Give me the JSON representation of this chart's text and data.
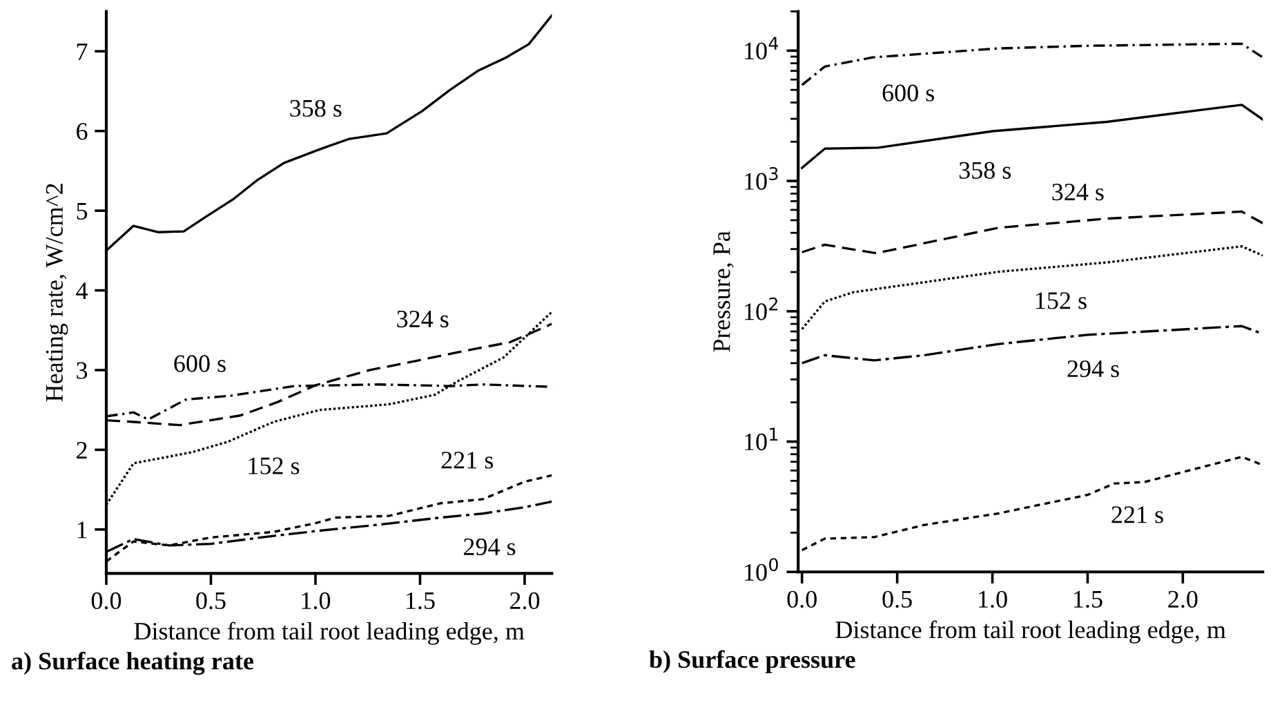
{
  "chart_data": [
    {
      "type": "line",
      "title": "a) Surface heating rate",
      "xlabel": "Distance from tail root leading edge, m",
      "ylabel": "Heating rate, W/cm^2",
      "xlim": [
        0,
        2.13
      ],
      "xticks": [
        {
          "value": 0,
          "label": "0.0"
        },
        {
          "value": 0.5,
          "label": "0.5"
        },
        {
          "value": 1,
          "label": "1.0"
        },
        {
          "value": 1.5,
          "label": "1.5"
        },
        {
          "value": 2,
          "label": "2.0"
        }
      ],
      "ylim": [
        0.45,
        7.5
      ],
      "yticks": [
        1,
        2,
        3,
        4,
        5,
        6,
        7
      ],
      "grid": false,
      "marker": "none",
      "series": [
        {
          "name": "358 s",
          "color": "#000000",
          "line_style": "solid",
          "x": [
            0,
            0.13,
            0.25,
            0.37,
            0.48,
            0.61,
            0.72,
            0.85,
            1.03,
            1.16,
            1.34,
            1.51,
            1.64,
            1.78,
            1.91,
            2.02,
            2.13
          ],
          "values": [
            4.5,
            4.81,
            4.73,
            4.74,
            4.93,
            5.15,
            5.38,
            5.6,
            5.78,
            5.9,
            5.97,
            6.25,
            6.51,
            6.76,
            6.92,
            7.09,
            7.45
          ]
        },
        {
          "name": "324 s",
          "color": "#000000",
          "line_style": "dashed",
          "x": [
            0,
            0.13,
            0.35,
            0.64,
            0.82,
            1.0,
            1.26,
            1.49,
            1.71,
            1.93,
            2.13
          ],
          "values": [
            2.37,
            2.35,
            2.31,
            2.43,
            2.6,
            2.81,
            3.0,
            3.12,
            3.24,
            3.35,
            3.58
          ]
        },
        {
          "name": "600 s",
          "color": "#000000",
          "line_style": "dashdot",
          "x": [
            0,
            0.13,
            0.2,
            0.38,
            0.6,
            0.9,
            1.3,
            1.65,
            1.8,
            2.13
          ],
          "values": [
            2.42,
            2.47,
            2.38,
            2.63,
            2.68,
            2.8,
            2.82,
            2.8,
            2.82,
            2.79
          ]
        },
        {
          "name": "152 s",
          "color": "#000000",
          "line_style": "dotted",
          "x": [
            0,
            0.13,
            0.41,
            0.58,
            0.8,
            1.02,
            1.35,
            1.57,
            1.68,
            1.9,
            2.13
          ],
          "values": [
            1.31,
            1.83,
            1.97,
            2.1,
            2.35,
            2.5,
            2.57,
            2.69,
            2.86,
            3.16,
            3.73
          ]
        },
        {
          "name": "221 s",
          "color": "#000000",
          "line_style": "shortdash",
          "x": [
            0,
            0.13,
            0.3,
            0.5,
            0.8,
            1.0,
            1.1,
            1.35,
            1.6,
            1.8,
            2.0,
            2.13
          ],
          "values": [
            0.6,
            0.85,
            0.8,
            0.9,
            0.97,
            1.08,
            1.15,
            1.17,
            1.33,
            1.38,
            1.6,
            1.68
          ]
        },
        {
          "name": "294 s",
          "color": "#000000",
          "line_style": "longdashdot",
          "x": [
            0,
            0.13,
            0.3,
            0.5,
            0.8,
            1.0,
            1.3,
            1.6,
            1.8,
            2.0,
            2.13
          ],
          "values": [
            0.72,
            0.88,
            0.8,
            0.82,
            0.92,
            0.98,
            1.06,
            1.15,
            1.2,
            1.28,
            1.35
          ]
        }
      ]
    },
    {
      "type": "line",
      "title": "b) Surface pressure",
      "xlabel": "Distance from tail root leading edge, m",
      "ylabel": "Pressure, Pa",
      "log": "y",
      "xlim": [
        -0.02,
        2.42
      ],
      "xticks": [
        {
          "value": 0,
          "label": "0.0"
        },
        {
          "value": 0.5,
          "label": "0.5"
        },
        {
          "value": 1,
          "label": "1.0"
        },
        {
          "value": 1.5,
          "label": "1.5"
        },
        {
          "value": 2,
          "label": "2.0"
        }
      ],
      "ylim": [
        1,
        20000
      ],
      "yticks": [
        {
          "value": 1,
          "label": "10$^{0}$"
        },
        {
          "value": 10,
          "label": "10$^{1}$"
        },
        {
          "value": 100,
          "label": "10$^{2}$"
        },
        {
          "value": 1000,
          "label": "10$^{3}$"
        },
        {
          "value": 10000,
          "label": "10$^{4}$"
        }
      ],
      "grid": false,
      "marker": "none",
      "series": [
        {
          "name": "600 s",
          "color": "#000000",
          "line_style": "dashdot",
          "x": [
            0,
            0.12,
            0.37,
            1.03,
            1.5,
            2.31,
            2.42
          ],
          "values": [
            5450,
            7550,
            8870,
            10400,
            10900,
            11300,
            8870
          ]
        },
        {
          "name": "358 s",
          "color": "#000000",
          "line_style": "solid",
          "x": [
            0,
            0.12,
            0.4,
            1.0,
            1.6,
            2.31,
            2.42
          ],
          "values": [
            1260,
            1770,
            1800,
            2410,
            2840,
            3840,
            2960
          ]
        },
        {
          "name": "324 s",
          "color": "#000000",
          "line_style": "dashed",
          "x": [
            0,
            0.12,
            0.39,
            1.03,
            1.6,
            2.31,
            2.42
          ],
          "values": [
            284,
            324,
            279,
            437,
            514,
            582,
            474
          ]
        },
        {
          "name": "152 s",
          "color": "#000000",
          "line_style": "dotted",
          "x": [
            0,
            0.12,
            0.27,
            1.03,
            1.6,
            2.31,
            2.42
          ],
          "values": [
            73,
            119,
            140,
            201,
            237,
            315,
            268
          ]
        },
        {
          "name": "294 s",
          "color": "#000000",
          "line_style": "longdashdot",
          "x": [
            0,
            0.12,
            0.38,
            0.64,
            1.03,
            1.5,
            2.31,
            2.42
          ],
          "values": [
            40,
            46,
            42,
            46,
            56,
            66,
            77,
            67
          ]
        },
        {
          "name": "221 s",
          "color": "#000000",
          "line_style": "shortdash",
          "x": [
            0,
            0.12,
            0.38,
            0.64,
            1.03,
            1.5,
            1.64,
            1.8,
            2.31,
            2.42
          ],
          "values": [
            1.47,
            1.8,
            1.85,
            2.29,
            2.81,
            3.9,
            4.77,
            4.9,
            7.64,
            6.6
          ]
        }
      ]
    }
  ]
}
